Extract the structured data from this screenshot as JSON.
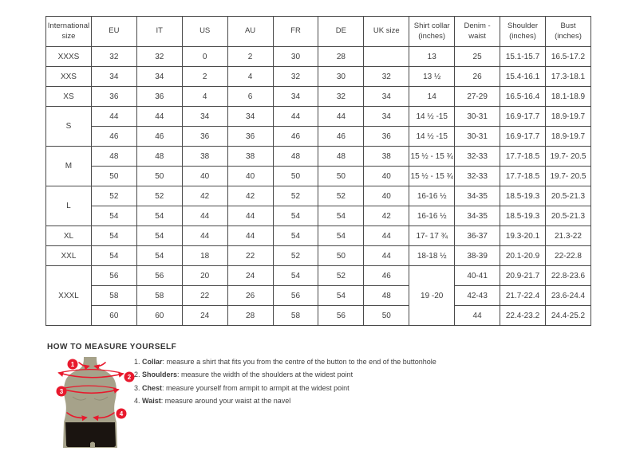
{
  "colors": {
    "accent_red": "#e8192d",
    "torso": "#a6a28a",
    "shorts": "#1a1410",
    "border_dark": "#4a4a4a",
    "border_light": "#a8a8a8",
    "text": "#3d3d3d"
  },
  "table": {
    "headers": [
      "International\nsize",
      "EU",
      "IT",
      "US",
      "AU",
      "FR",
      "DE",
      "UK size",
      "Shirt collar\n(inches)",
      "Denim -\nwaist",
      "Shoulder\n(inches)",
      "Bust (inches)"
    ],
    "groups": [
      {
        "size": "XXXS",
        "rows": [
          [
            "32",
            "32",
            "0",
            "2",
            "30",
            "28",
            "",
            "13",
            "25",
            "15.1-15.7",
            "16.5-17.2"
          ]
        ]
      },
      {
        "size": "XXS",
        "rows": [
          [
            "34",
            "34",
            "2",
            "4",
            "32",
            "30",
            "32",
            "13 ½",
            "26",
            "15.4-16.1",
            "17.3-18.1"
          ]
        ]
      },
      {
        "size": "XS",
        "rows": [
          [
            "36",
            "36",
            "4",
            "6",
            "34",
            "32",
            "34",
            "14",
            "27-29",
            "16.5-16.4",
            "18.1-18.9"
          ]
        ]
      },
      {
        "size": "S",
        "rows": [
          [
            "44",
            "44",
            "34",
            "34",
            "44",
            "44",
            "34",
            "14 ½ -15",
            "30-31",
            "16.9-17.7",
            "18.9-19.7"
          ],
          [
            "46",
            "46",
            "36",
            "36",
            "46",
            "46",
            "36",
            "14 ½ -15",
            "30-31",
            "16.9-17.7",
            "18.9-19.7"
          ]
        ]
      },
      {
        "size": "M",
        "rows": [
          [
            "48",
            "48",
            "38",
            "38",
            "48",
            "48",
            "38",
            "15 ½ - 15 ¾",
            "32-33",
            "17.7-18.5",
            "19.7- 20.5"
          ],
          [
            "50",
            "50",
            "40",
            "40",
            "50",
            "50",
            "40",
            "15 ½ - 15 ¾",
            "32-33",
            "17.7-18.5",
            "19.7- 20.5"
          ]
        ]
      },
      {
        "size": "L",
        "rows": [
          [
            "52",
            "52",
            "42",
            "42",
            "52",
            "52",
            "40",
            "16-16 ½",
            "34-35",
            "18.5-19.3",
            "20.5-21.3"
          ],
          [
            "54",
            "54",
            "44",
            "44",
            "54",
            "54",
            "42",
            "16-16 ½",
            "34-35",
            "18.5-19.3",
            "20.5-21.3"
          ]
        ]
      },
      {
        "size": "XL",
        "rows": [
          [
            "54",
            "54",
            "44",
            "44",
            "54",
            "54",
            "44",
            "17- 17 ¾",
            "36-37",
            "19.3-20.1",
            "21.3-22"
          ]
        ]
      },
      {
        "size": "XXL",
        "rows": [
          [
            "54",
            "54",
            "18",
            "22",
            "52",
            "50",
            "44",
            "18-18 ½",
            "38-39",
            "20.1-20.9",
            "22-22.8"
          ]
        ]
      },
      {
        "size": "XXXL",
        "collar_merged": "19 -20",
        "rows": [
          [
            "56",
            "56",
            "20",
            "24",
            "54",
            "52",
            "46",
            "40-41",
            "20.9-21.7",
            "22.8-23.6"
          ],
          [
            "58",
            "58",
            "22",
            "26",
            "56",
            "54",
            "48",
            "42-43",
            "21.7-22.4",
            "23.6-24.4"
          ],
          [
            "60",
            "60",
            "24",
            "28",
            "58",
            "56",
            "50",
            "44",
            "22.4-23.2",
            "24.4-25.2"
          ]
        ]
      }
    ]
  },
  "measure": {
    "heading": "HOW TO MEASURE YOURSELF",
    "items": [
      {
        "num": "1.",
        "term": "Collar",
        "text": ": measure a shirt that fits you from the centre of the button to the end of the buttonhole"
      },
      {
        "num": "2.",
        "term": "Shoulders",
        "text": ": measure the width of the shoulders at the widest point"
      },
      {
        "num": "3.",
        "term": "Chest",
        "text": ": measure yourself from armpit to armpit at the widest point"
      },
      {
        "num": "4.",
        "term": "Waist",
        "text": ": measure around your waist at the navel"
      }
    ],
    "figure": {
      "name": "mannequin-torso",
      "markers": [
        "1",
        "2",
        "3",
        "4"
      ]
    }
  }
}
